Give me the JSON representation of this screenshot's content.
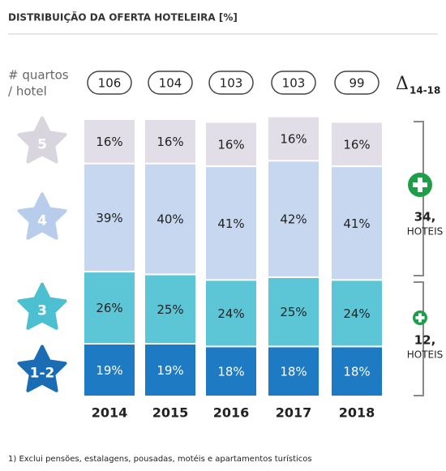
{
  "chart_data": {
    "type": "bar",
    "stacked": true,
    "title": "DISTRIBUIÇÃO DA OFERTA HOTELEIRA [%]",
    "rooms_label": [
      "# quartos",
      "/ hotel"
    ],
    "rooms_per_hotel": [
      106,
      104,
      103,
      103,
      99
    ],
    "delta_label": {
      "symbol": "Δ",
      "sub": "14-18"
    },
    "categories": [
      "2014",
      "2015",
      "2016",
      "2017",
      "2018"
    ],
    "series": [
      {
        "name": "1-2",
        "color": "#1f7ac4",
        "star_color": "#1a6db5",
        "values": [
          19,
          19,
          18,
          18,
          18
        ],
        "value_labels": [
          "19%",
          "19%",
          "18%",
          "18%",
          "18%"
        ]
      },
      {
        "name": "3",
        "color": "#5cc6d7",
        "star_color": "#4cbfd1",
        "values": [
          26,
          25,
          24,
          25,
          24
        ],
        "value_labels": [
          "26%",
          "25%",
          "24%",
          "25%",
          "24%"
        ]
      },
      {
        "name": "4",
        "color": "#c6d7ef",
        "star_color": "#b8cceb",
        "values": [
          39,
          40,
          41,
          42,
          41
        ],
        "value_labels": [
          "39%",
          "40%",
          "41%",
          "42%",
          "41%"
        ]
      },
      {
        "name": "5",
        "color": "#e1dee7",
        "star_color": "#d8d5df",
        "values": [
          16,
          16,
          16,
          16,
          16
        ],
        "value_labels": [
          "16%",
          "16%",
          "16%",
          "16%",
          "16%"
        ]
      }
    ],
    "annotations": [
      {
        "value": "34,",
        "label": "HOTEIS"
      },
      {
        "value": "12,",
        "label": "HOTEIS"
      }
    ],
    "footnote": "1) Exclui pensões, estalagens, pousadas, motéis e apartamentos turísticos"
  }
}
